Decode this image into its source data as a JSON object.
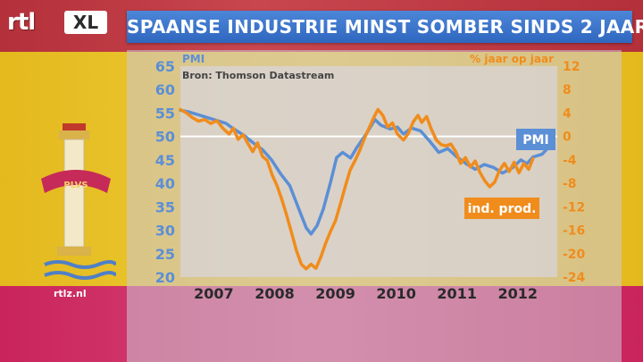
{
  "brand": {
    "rtl": "rtl",
    "xl": "XL",
    "site": "rtlz.nl"
  },
  "header": {
    "title": "SPAANSE INDUSTRIE MINST SOMBER SINDS 2 JAAR"
  },
  "emblem": {
    "motto": "PLVS"
  },
  "colors": {
    "pmi": "#5b8fd6",
    "ind_prod": "#f08c1c",
    "title_bar": "#3a72c8",
    "ref_line": "#ffffff"
  },
  "chart_data": {
    "type": "line",
    "title": "SPAANSE INDUSTRIE MINST SOMBER SINDS 2 JAAR",
    "source": "Bron: Thomson Datastream",
    "left_axis": {
      "label": "PMI",
      "ylim": [
        20,
        65
      ],
      "ticks": [
        65,
        60,
        55,
        50,
        45,
        40,
        35,
        30,
        25,
        20
      ]
    },
    "right_axis": {
      "label": "% jaar op jaar",
      "ylim": [
        -24,
        12
      ],
      "ticks": [
        12,
        8,
        4,
        0,
        -4,
        -8,
        -12,
        -16,
        -20,
        -24
      ]
    },
    "x_axis": {
      "ticks": [
        "2007",
        "2008",
        "2009",
        "2010",
        "2011",
        "2012"
      ],
      "xlim": [
        2006.75,
        2012.95
      ]
    },
    "reference_line": {
      "axis": "left",
      "value": 50
    },
    "series": [
      {
        "name": "PMI",
        "axis": "left",
        "color": "#5b8fd6",
        "points": [
          [
            2006.75,
            55.6
          ],
          [
            2006.9,
            55.2
          ],
          [
            2007.05,
            54.6
          ],
          [
            2007.2,
            54.0
          ],
          [
            2007.35,
            53.4
          ],
          [
            2007.5,
            52.8
          ],
          [
            2007.65,
            51.4
          ],
          [
            2007.8,
            50.2
          ],
          [
            2007.95,
            48.6
          ],
          [
            2008.1,
            47.2
          ],
          [
            2008.25,
            45.0
          ],
          [
            2008.4,
            42.0
          ],
          [
            2008.55,
            39.5
          ],
          [
            2008.7,
            34.5
          ],
          [
            2008.82,
            30.5
          ],
          [
            2008.9,
            29.2
          ],
          [
            2009.0,
            31.0
          ],
          [
            2009.1,
            34.5
          ],
          [
            2009.22,
            40.2
          ],
          [
            2009.32,
            45.5
          ],
          [
            2009.42,
            46.6
          ],
          [
            2009.55,
            45.4
          ],
          [
            2009.65,
            47.6
          ],
          [
            2009.8,
            50.4
          ],
          [
            2009.95,
            53.6
          ],
          [
            2010.05,
            52.4
          ],
          [
            2010.2,
            51.6
          ],
          [
            2010.32,
            52.0
          ],
          [
            2010.42,
            50.5
          ],
          [
            2010.55,
            51.8
          ],
          [
            2010.7,
            51.2
          ],
          [
            2010.85,
            49.0
          ],
          [
            2011.0,
            46.6
          ],
          [
            2011.15,
            47.4
          ],
          [
            2011.3,
            45.6
          ],
          [
            2011.45,
            44.2
          ],
          [
            2011.6,
            43.0
          ],
          [
            2011.75,
            44.0
          ],
          [
            2011.9,
            43.4
          ],
          [
            2012.05,
            42.2
          ],
          [
            2012.2,
            43.2
          ],
          [
            2012.35,
            45.0
          ],
          [
            2012.45,
            44.2
          ],
          [
            2012.55,
            45.6
          ],
          [
            2012.7,
            46.2
          ],
          [
            2012.8,
            47.6
          ]
        ]
      },
      {
        "name": "ind. prod.",
        "axis": "right",
        "color": "#f08c1c",
        "points": [
          [
            2006.75,
            4.6
          ],
          [
            2006.85,
            4.0
          ],
          [
            2006.95,
            3.2
          ],
          [
            2007.05,
            2.6
          ],
          [
            2007.15,
            2.9
          ],
          [
            2007.25,
            2.2
          ],
          [
            2007.35,
            2.7
          ],
          [
            2007.45,
            1.4
          ],
          [
            2007.55,
            0.4
          ],
          [
            2007.62,
            1.4
          ],
          [
            2007.7,
            -0.5
          ],
          [
            2007.78,
            0.3
          ],
          [
            2007.86,
            -1.2
          ],
          [
            2007.94,
            -2.6
          ],
          [
            2008.02,
            -1.1
          ],
          [
            2008.1,
            -3.4
          ],
          [
            2008.18,
            -4.1
          ],
          [
            2008.26,
            -6.6
          ],
          [
            2008.34,
            -8.4
          ],
          [
            2008.42,
            -10.8
          ],
          [
            2008.5,
            -13.5
          ],
          [
            2008.58,
            -16.5
          ],
          [
            2008.66,
            -19.5
          ],
          [
            2008.74,
            -21.8
          ],
          [
            2008.82,
            -22.6
          ],
          [
            2008.9,
            -21.8
          ],
          [
            2008.98,
            -22.5
          ],
          [
            2009.06,
            -20.6
          ],
          [
            2009.14,
            -18.2
          ],
          [
            2009.22,
            -16.2
          ],
          [
            2009.3,
            -14.4
          ],
          [
            2009.38,
            -11.6
          ],
          [
            2009.46,
            -8.6
          ],
          [
            2009.54,
            -5.8
          ],
          [
            2009.62,
            -4.2
          ],
          [
            2009.7,
            -2.4
          ],
          [
            2009.78,
            -0.3
          ],
          [
            2009.86,
            1.6
          ],
          [
            2009.94,
            3.4
          ],
          [
            2010.0,
            4.6
          ],
          [
            2010.08,
            3.6
          ],
          [
            2010.16,
            1.6
          ],
          [
            2010.24,
            2.3
          ],
          [
            2010.32,
            0.4
          ],
          [
            2010.42,
            -0.6
          ],
          [
            2010.5,
            0.5
          ],
          [
            2010.58,
            2.5
          ],
          [
            2010.66,
            3.6
          ],
          [
            2010.72,
            2.4
          ],
          [
            2010.8,
            3.4
          ],
          [
            2010.88,
            1.2
          ],
          [
            2010.96,
            -0.6
          ],
          [
            2011.04,
            -1.4
          ],
          [
            2011.12,
            -1.6
          ],
          [
            2011.2,
            -1.3
          ],
          [
            2011.28,
            -2.6
          ],
          [
            2011.36,
            -4.6
          ],
          [
            2011.44,
            -3.6
          ],
          [
            2011.52,
            -5.2
          ],
          [
            2011.6,
            -4.2
          ],
          [
            2011.68,
            -6.2
          ],
          [
            2011.76,
            -7.6
          ],
          [
            2011.84,
            -8.6
          ],
          [
            2011.92,
            -7.8
          ],
          [
            2012.0,
            -5.8
          ],
          [
            2012.08,
            -4.6
          ],
          [
            2012.16,
            -6.0
          ],
          [
            2012.24,
            -4.4
          ],
          [
            2012.32,
            -6.2
          ],
          [
            2012.4,
            -4.6
          ],
          [
            2012.48,
            -5.6
          ],
          [
            2012.55,
            -3.8
          ]
        ]
      }
    ],
    "series_labels": [
      {
        "series": "PMI",
        "text": "PMI",
        "color": "#5b8fd6"
      },
      {
        "series": "ind. prod.",
        "text": "ind. prod.",
        "color": "#f08c1c"
      }
    ]
  }
}
